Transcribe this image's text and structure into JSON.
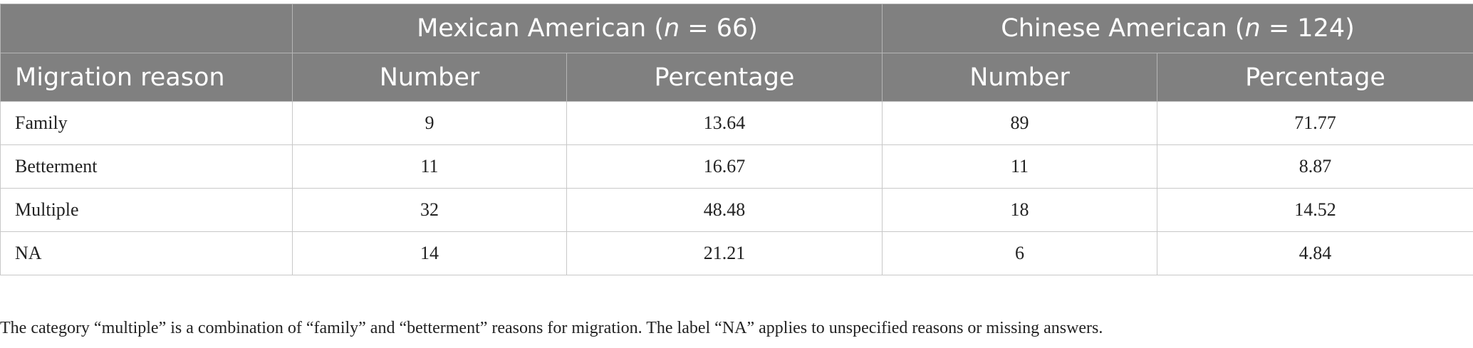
{
  "table": {
    "groups": [
      {
        "parts": [
          "Mexican American (",
          "n",
          " = 66)"
        ]
      },
      {
        "parts": [
          "Chinese American (",
          "n",
          " = 124)"
        ]
      }
    ],
    "columns": [
      "Migration reason",
      "Number",
      "Percentage",
      "Number",
      "Percentage"
    ],
    "rows": [
      [
        "Family",
        "9",
        "13.64",
        "89",
        "71.77"
      ],
      [
        "Betterment",
        "11",
        "16.67",
        "11",
        "8.87"
      ],
      [
        "Multiple",
        "32",
        "48.48",
        "18",
        "14.52"
      ],
      [
        "NA",
        "14",
        "21.21",
        "6",
        "4.84"
      ]
    ]
  },
  "footnote": "The category “multiple” is a combination of “family” and “betterment” reasons for migration. The label “NA” applies to unspecified reasons or missing answers."
}
